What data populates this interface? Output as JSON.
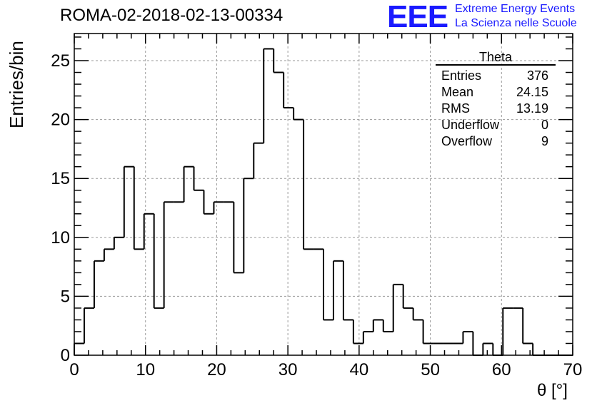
{
  "title": "ROMA-02-2018-02-13-00334",
  "logo": {
    "mark": "EEE",
    "line1": "Extreme Energy Events",
    "line2": "La Scienza nelle Scuole",
    "color": "#1a1aff"
  },
  "stats": {
    "name": "Theta",
    "rows": [
      {
        "label": "Entries",
        "value": "376"
      },
      {
        "label": "Mean",
        "value": "24.15"
      },
      {
        "label": "RMS",
        "value": "13.19"
      },
      {
        "label": "Underflow",
        "value": "0"
      },
      {
        "label": "Overflow",
        "value": "9"
      }
    ]
  },
  "chart_data": {
    "type": "bar",
    "style": "step-histogram",
    "title": "ROMA-02-2018-02-13-00334",
    "xlabel": "θ [°]",
    "ylabel": "Entries/bin",
    "xlim": [
      0,
      70
    ],
    "ylim": [
      0,
      27.3
    ],
    "grid": true,
    "bin_width": 1.4,
    "bin_start": 0,
    "values": [
      1,
      4,
      8,
      9,
      10,
      16,
      9,
      12,
      4,
      13,
      13,
      16,
      14,
      12,
      13,
      13,
      7,
      15,
      18,
      26,
      24,
      21,
      20,
      9,
      9,
      3,
      8,
      3,
      1,
      2,
      3,
      2,
      6,
      4,
      3,
      1,
      1,
      1,
      1,
      2,
      0,
      1,
      0,
      4,
      4,
      1,
      0,
      0,
      0,
      0
    ],
    "xticks": [
      0,
      10,
      20,
      30,
      40,
      50,
      60,
      70
    ],
    "yticks": [
      0,
      5,
      10,
      15,
      20,
      25
    ]
  }
}
